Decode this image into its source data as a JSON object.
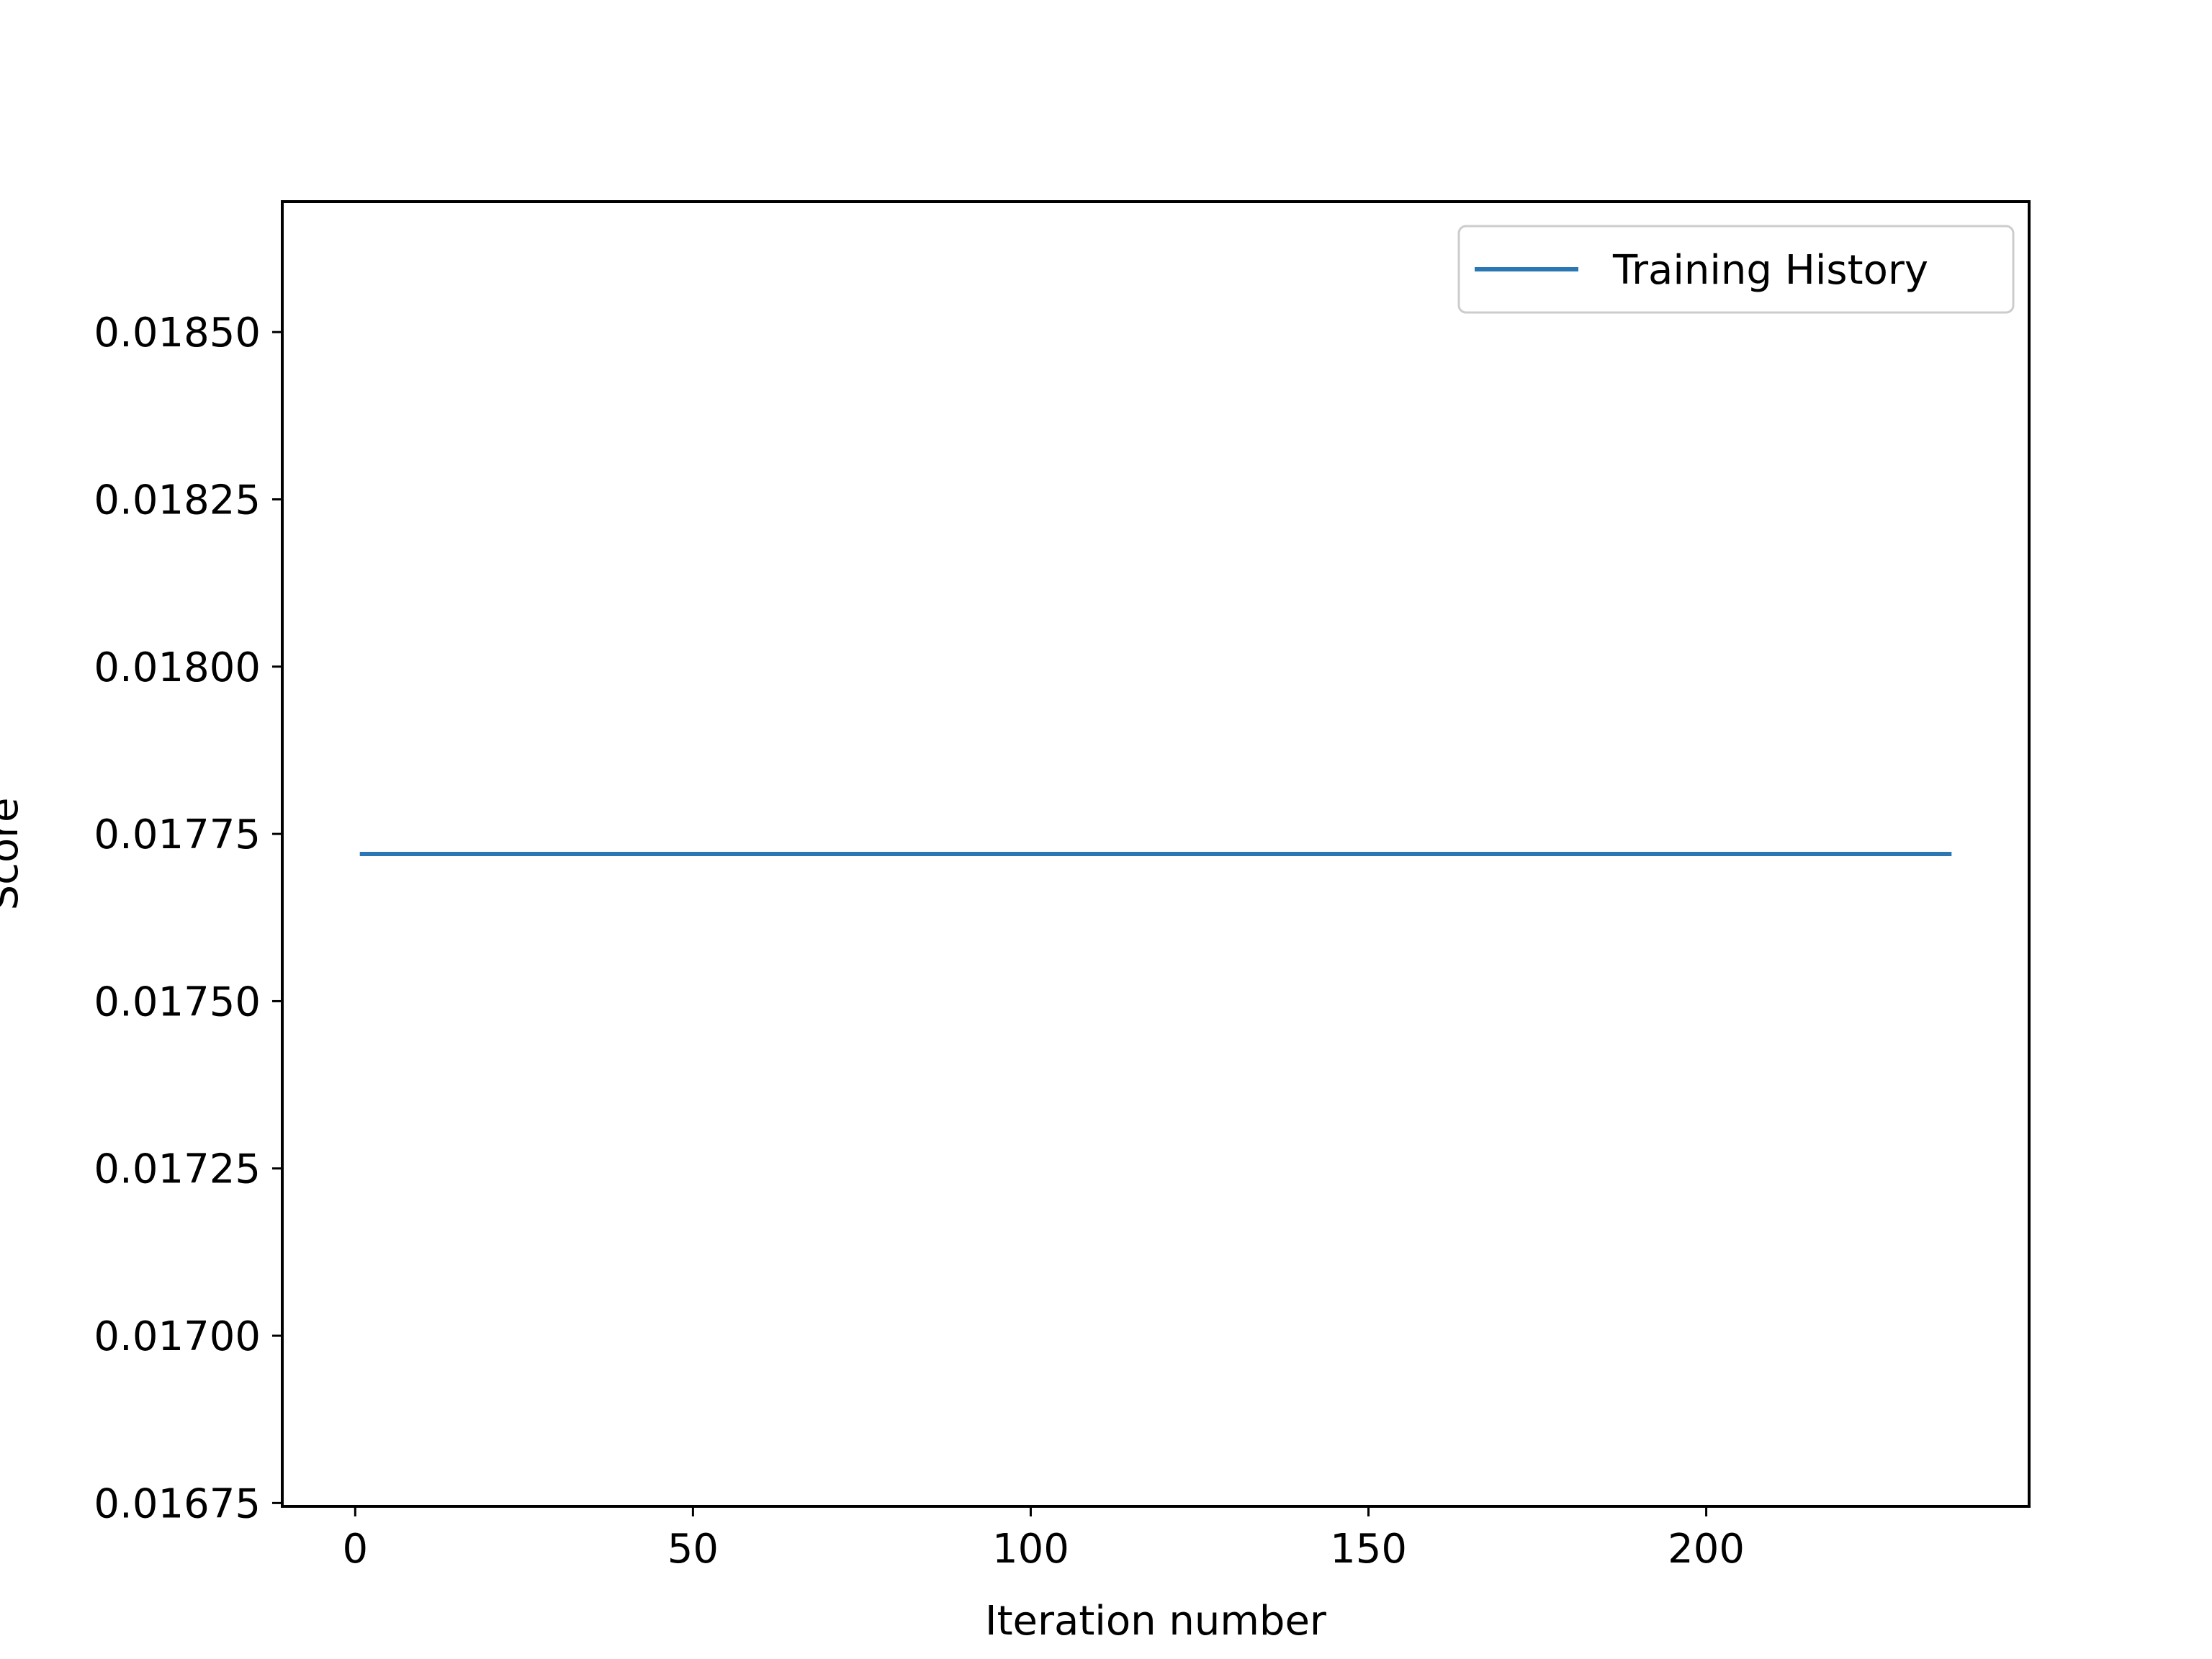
{
  "chart_data": {
    "type": "line",
    "title": "",
    "xlabel": "Iteration number",
    "ylabel": "Score",
    "xlim": [
      -10.8,
      247.8
    ],
    "ylim": [
      0.016745,
      0.018695
    ],
    "x_ticks": [
      0,
      50,
      100,
      150,
      200
    ],
    "x_tick_labels": [
      "0",
      "50",
      "100",
      "150",
      "200"
    ],
    "y_ticks": [
      0.01675,
      0.017,
      0.01725,
      0.0175,
      0.01775,
      0.018,
      0.01825,
      0.0185
    ],
    "y_tick_labels": [
      "0.01675",
      "0.01700",
      "0.01725",
      "0.01750",
      "0.01775",
      "0.01800",
      "0.01825",
      "0.01850"
    ],
    "grid": false,
    "legend_position": "top-right",
    "series": [
      {
        "name": "Training History",
        "color": "#2a77b4",
        "x": [
          1,
          236
        ],
        "y": [
          0.01772,
          0.01772
        ]
      }
    ]
  }
}
